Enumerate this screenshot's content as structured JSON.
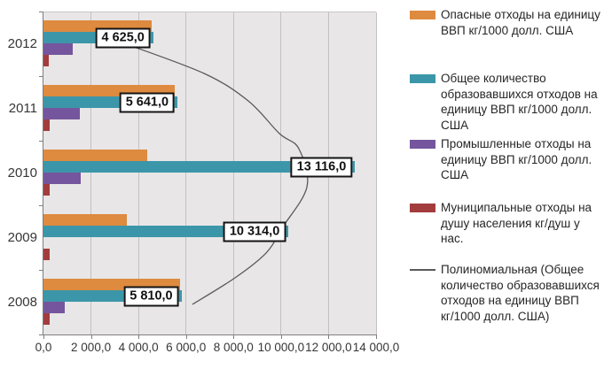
{
  "chart_data": {
    "type": "bar",
    "orientation": "horizontal",
    "title": "",
    "categories": [
      "2012",
      "2011",
      "2010",
      "2009",
      "2008"
    ],
    "series": [
      {
        "name": "Опасные отходы на единицу ВВП кг/1000 долл. США",
        "color": "#DE8A3F",
        "values": [
          4550,
          5540,
          4350,
          3500,
          5750
        ]
      },
      {
        "name": "Общее количество образовавшихся отходов на единицу ВВП  кг/1000 долл. США",
        "color": "#3C96A9",
        "values": [
          4625,
          5641,
          13116,
          10314,
          5810
        ],
        "data_labels": [
          "4 625,0",
          "5 641,0",
          "13 116,0",
          "10 314,0",
          "5 810,0"
        ]
      },
      {
        "name": "Промышленные отходы на единицу ВВП  кг/1000 долл. США",
        "color": "#75559D",
        "values": [
          1230,
          1530,
          1570,
          0,
          900
        ]
      },
      {
        "name": "Муниципальные отходы на душу населения  кг/душ у нас.",
        "color": "#A33C3C",
        "values": [
          230,
          250,
          250,
          250,
          250
        ]
      }
    ],
    "trendline": {
      "name": "Полиномиальная (Общее количество образовавшихся отходов на единицу ВВП кг/1000 долл. США)",
      "color": "#5A5A5A",
      "points": [
        [
          3400,
          0.096
        ],
        [
          6760,
          0.189
        ],
        [
          8620,
          0.274
        ],
        [
          9930,
          0.375
        ],
        [
          10750,
          0.422
        ],
        [
          11090,
          0.54
        ],
        [
          10040,
          0.668
        ],
        [
          9370,
          0.745
        ],
        [
          8060,
          0.822
        ],
        [
          6270,
          0.904
        ]
      ]
    },
    "x_axis": {
      "min": 0,
      "max": 14000,
      "tick_labels": [
        "0,0",
        "2 000,0",
        "4 000,0",
        "6 000,0",
        "8 000,0",
        "10 000,0",
        "12 000,0",
        "14 000,0"
      ],
      "tick_step": 2000
    },
    "legend_position": "right",
    "grid": true
  },
  "colors": {
    "plot_bg": "#E8E6E7",
    "gridline": "#C2C0C1",
    "axis": "#7F7F7F",
    "text": "#363636",
    "label_box_bg": "#FFFFFF",
    "label_box_border": "#141414"
  }
}
